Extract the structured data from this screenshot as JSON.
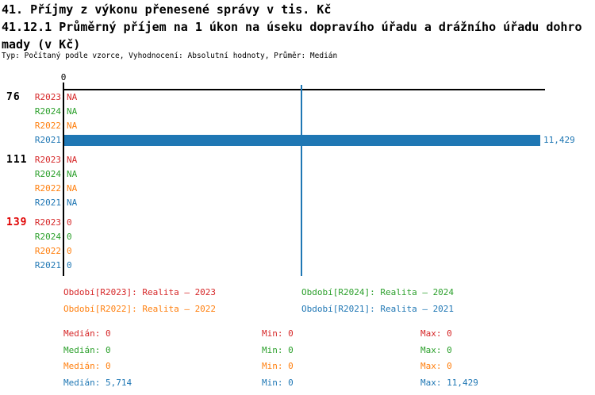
{
  "header": {
    "title_line1": "41. Příjmy z výkonu přenesené správy v tis. Kč",
    "title_line2": "41.12.1 Průměrný příjem na 1 úkon na úseku dopravího úřadu a drážního úřadu dohro",
    "title_line3": "mady (v Kč)",
    "meta": "Typ: Počítaný podle vzorce, Vyhodnocení: Absolutní hodnoty, Průměr: Medián"
  },
  "colors": {
    "R2023": "#d62728",
    "R2024": "#2ca02c",
    "R2022": "#ff7f0e",
    "R2021": "#1f77b4",
    "axis": "#000000",
    "highlight_category": "#e00000"
  },
  "chart_data": {
    "type": "bar",
    "orientation": "horizontal",
    "title": "41. Příjmy z výkonu přenesené správy v tis. Kč",
    "subtitle": "41.12.1 Průměrný příjem na 1 úkon na úseku dopravího úřadu a drážního úřadu dohromady (v Kč)",
    "axis_tick_label": "0",
    "xlim": [
      0,
      11570
    ],
    "grid": false,
    "categories": [
      "76",
      "111",
      "139"
    ],
    "highlighted_category": "139",
    "series_order": [
      "R2023",
      "R2024",
      "R2022",
      "R2021"
    ],
    "values": {
      "76": [
        null,
        null,
        null,
        11429
      ],
      "111": [
        null,
        null,
        null,
        null
      ],
      "139": [
        0,
        0,
        0,
        0
      ]
    },
    "values_display": {
      "76": [
        "NA",
        "NA",
        "NA",
        "11,429"
      ],
      "111": [
        "NA",
        "NA",
        "NA",
        "NA"
      ],
      "139": [
        "0",
        "0",
        "0",
        "0"
      ]
    },
    "median_marker": {
      "series": "R2021",
      "value": 5714
    }
  },
  "legend": {
    "rows": [
      [
        {
          "series": "R2023",
          "label": "Období[R2023]: Realita – 2023"
        },
        {
          "series": "R2024",
          "label": "Období[R2024]: Realita – 2024"
        }
      ],
      [
        {
          "series": "R2022",
          "label": "Období[R2022]: Realita – 2022"
        },
        {
          "series": "R2021",
          "label": "Období[R2021]: Realita – 2021"
        }
      ]
    ]
  },
  "stats": {
    "rows": [
      {
        "series": "R2023",
        "cells": [
          "Medián: 0",
          "Min: 0",
          "Max: 0"
        ]
      },
      {
        "series": "R2024",
        "cells": [
          "Medián: 0",
          "Min: 0",
          "Max: 0"
        ]
      },
      {
        "series": "R2022",
        "cells": [
          "Medián: 0",
          "Min: 0",
          "Max: 0"
        ]
      },
      {
        "series": "R2021",
        "cells": [
          "Medián: 5,714",
          "Min: 0",
          "Max: 11,429"
        ]
      }
    ]
  }
}
